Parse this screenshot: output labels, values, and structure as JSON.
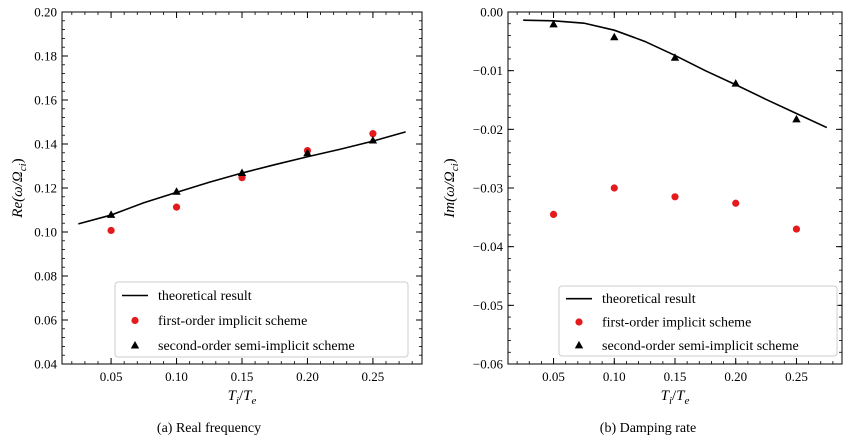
{
  "chart_data": [
    {
      "type": "line+scatter",
      "caption": "(a)  Real frequency",
      "xlabel_main": "T",
      "xlabel_sub1": "i",
      "xlabel_sep": "/",
      "xlabel_main2": "T",
      "xlabel_sub2": "e",
      "ylabel": "Re(ω/Ω",
      "ylabel_sub": "ci",
      "ylabel_end": ")",
      "xlim": [
        0.0125,
        0.2875
      ],
      "ylim": [
        0.04,
        0.2
      ],
      "xticks": [
        0.05,
        0.1,
        0.15,
        0.2,
        0.25
      ],
      "xtick_labels": [
        "0.05",
        "0.10",
        "0.15",
        "0.20",
        "0.25"
      ],
      "yticks": [
        0.04,
        0.06,
        0.08,
        0.1,
        0.12,
        0.14,
        0.16,
        0.18,
        0.2
      ],
      "ytick_labels": [
        "0.04",
        "0.06",
        "0.08",
        "0.10",
        "0.12",
        "0.14",
        "0.16",
        "0.18",
        "0.20"
      ],
      "legend_position": "lower-right",
      "series": [
        {
          "name": "theoretical result",
          "kind": "line",
          "color": "#000000",
          "x": [
            0.025,
            0.05,
            0.075,
            0.1,
            0.125,
            0.15,
            0.175,
            0.2,
            0.225,
            0.25,
            0.275
          ],
          "y": [
            0.1037,
            0.1077,
            0.1133,
            0.118,
            0.1226,
            0.1268,
            0.1306,
            0.1342,
            0.1376,
            0.1413,
            0.1455
          ]
        },
        {
          "name": "first-order implicit scheme",
          "kind": "scatter-circle",
          "color": "#e41a1c",
          "x": [
            0.05,
            0.1,
            0.15,
            0.2,
            0.25
          ],
          "y": [
            0.1007,
            0.1113,
            0.1247,
            0.137,
            0.1447
          ]
        },
        {
          "name": "second-order semi-implicit scheme",
          "kind": "scatter-triangle",
          "color": "#000000",
          "x": [
            0.05,
            0.1,
            0.15,
            0.2,
            0.25
          ],
          "y": [
            0.1078,
            0.1183,
            0.1268,
            0.1358,
            0.1416
          ]
        }
      ]
    },
    {
      "type": "line+scatter",
      "caption": "(b)  Damping rate",
      "xlabel_main": "T",
      "xlabel_sub1": "i",
      "xlabel_sep": "/",
      "xlabel_main2": "T",
      "xlabel_sub2": "e",
      "ylabel": "Im(ω/Ω",
      "ylabel_sub": "ci",
      "ylabel_end": ")",
      "xlim": [
        0.0125,
        0.2875
      ],
      "ylim": [
        -0.06,
        0.0
      ],
      "xticks": [
        0.05,
        0.1,
        0.15,
        0.2,
        0.25
      ],
      "xtick_labels": [
        "0.05",
        "0.10",
        "0.15",
        "0.20",
        "0.25"
      ],
      "yticks": [
        -0.06,
        -0.05,
        -0.04,
        -0.03,
        -0.02,
        -0.01,
        0.0
      ],
      "ytick_labels": [
        "−0.06",
        "−0.05",
        "−0.04",
        "−0.03",
        "−0.02",
        "−0.01",
        "0.00"
      ],
      "legend_position": "lower-right",
      "series": [
        {
          "name": "theoretical result",
          "kind": "line",
          "color": "#000000",
          "x": [
            0.025,
            0.05,
            0.075,
            0.1,
            0.125,
            0.15,
            0.175,
            0.2,
            0.225,
            0.25,
            0.275
          ],
          "y": [
            -0.0014,
            -0.0015,
            -0.0019,
            -0.0031,
            -0.005,
            -0.0074,
            -0.01,
            -0.0124,
            -0.0149,
            -0.0173,
            -0.0197
          ]
        },
        {
          "name": "first-order implicit scheme",
          "kind": "scatter-circle",
          "color": "#e41a1c",
          "x": [
            0.05,
            0.1,
            0.15,
            0.2,
            0.25
          ],
          "y": [
            -0.0345,
            -0.03,
            -0.0315,
            -0.0326,
            -0.037
          ]
        },
        {
          "name": "second-order semi-implicit scheme",
          "kind": "scatter-triangle",
          "color": "#000000",
          "x": [
            0.05,
            0.1,
            0.15,
            0.2,
            0.25
          ],
          "y": [
            -0.0021,
            -0.0043,
            -0.0078,
            -0.0122,
            -0.0183
          ]
        }
      ]
    }
  ]
}
